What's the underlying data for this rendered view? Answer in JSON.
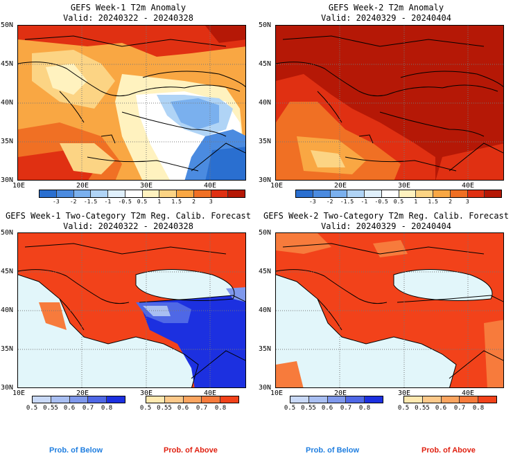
{
  "panels": {
    "p1": {
      "title1": "GEFS Week-1 T2m Anomaly",
      "title2": "Valid: 20240322 - 20240328"
    },
    "p2": {
      "title1": "GEFS Week-2 T2m Anomaly",
      "title2": "Valid: 20240329 - 20240404"
    },
    "p3": {
      "title1": "GEFS Week-1 Two-Category T2m Reg. Calib. Forecast",
      "title2": "Valid: 20240322 - 20240328"
    },
    "p4": {
      "title1": "GEFS Week-2 Two-Category T2m Reg. Calib. Forecast",
      "title2": "Valid: 20240329 - 20240404"
    }
  },
  "axes": {
    "lat_labels": [
      "50N",
      "45N",
      "40N",
      "35N",
      "30N"
    ],
    "lon_labels": [
      "10E",
      "20E",
      "30E",
      "40E"
    ]
  },
  "anomaly_colorbar": {
    "ticks": [
      "-3",
      "-2",
      "-1.5",
      "-1",
      "-0.5",
      "0.5",
      "1",
      "1.5",
      "2",
      "3"
    ],
    "colors": [
      "#2a6fd0",
      "#4b8be0",
      "#7ab0ee",
      "#b0d4f6",
      "#e0f0fc",
      "#ffffff",
      "#fff2bf",
      "#fcd484",
      "#f9a743",
      "#f07024",
      "#e03012",
      "#b51806"
    ]
  },
  "below_colorbar": {
    "ticks": [
      "0.5",
      "0.55",
      "0.6",
      "0.7",
      "0.8"
    ],
    "colors": [
      "#c9d9f7",
      "#a9bff2",
      "#7f98ec",
      "#4f68e6",
      "#1c30e0"
    ]
  },
  "above_colorbar": {
    "ticks": [
      "0.5",
      "0.55",
      "0.6",
      "0.7",
      "0.8"
    ],
    "colors": [
      "#ffe9b0",
      "#fdc98a",
      "#fba560",
      "#f77b3c",
      "#f2421a"
    ]
  },
  "legend": {
    "below_label": "Prob. of Below",
    "above_label": "Prob. of Above",
    "below_color": "#1f7ee0",
    "above_color": "#e02010"
  },
  "colors": {
    "sea_light": "#e2f6fa",
    "deep_red": "#b51806"
  }
}
